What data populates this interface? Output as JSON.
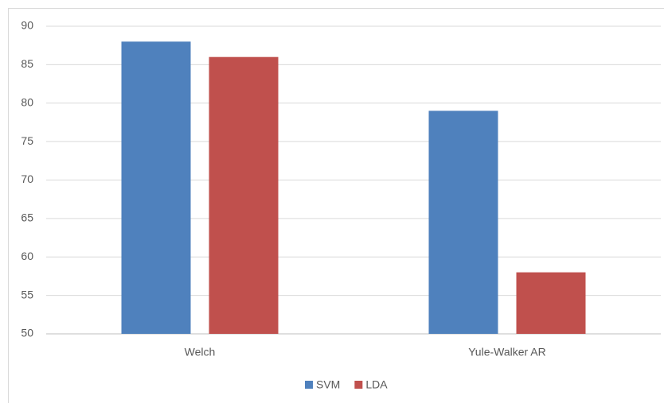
{
  "chart_data": {
    "type": "bar",
    "categories": [
      "Welch",
      "Yule-Walker AR"
    ],
    "series": [
      {
        "name": "SVM",
        "color": "#4f81bd",
        "values": [
          88,
          79
        ]
      },
      {
        "name": "LDA",
        "color": "#c0504d",
        "values": [
          86,
          58
        ]
      }
    ],
    "ylim": [
      50,
      90
    ],
    "yticks": [
      50,
      55,
      60,
      65,
      70,
      75,
      80,
      85,
      90
    ],
    "grid": true,
    "legend": "bottom"
  }
}
